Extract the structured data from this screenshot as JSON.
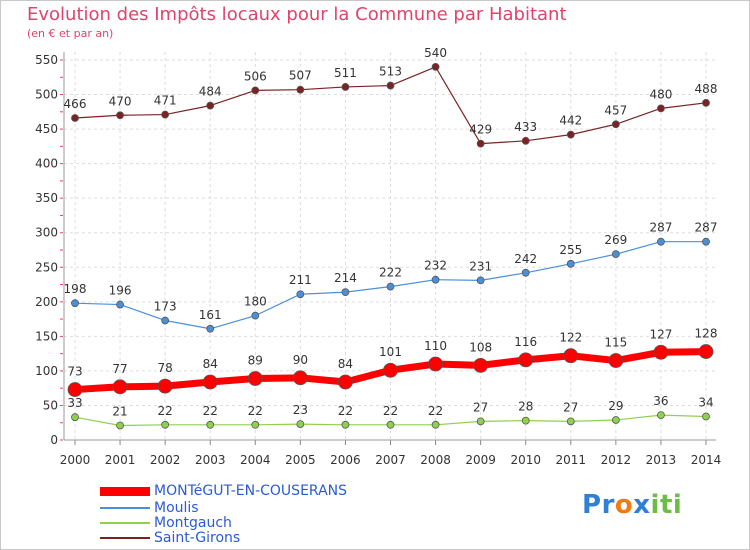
{
  "chart_data": {
    "type": "line",
    "title": "Evolution des Impôts locaux pour la Commune par Habitant",
    "subtitle": "(en € et par an)",
    "xlabel": "",
    "ylabel": "",
    "ylim": [
      0,
      550
    ],
    "yticks": [
      "0",
      "50",
      "100",
      "150",
      "200",
      "250",
      "300",
      "350",
      "400",
      "450",
      "500",
      "550"
    ],
    "grid": true,
    "legend_position": "bottom-left",
    "categories": [
      "2000",
      "2001",
      "2002",
      "2003",
      "2004",
      "2005",
      "2006",
      "2007",
      "2008",
      "2009",
      "2010",
      "2011",
      "2012",
      "2013",
      "2014"
    ],
    "series": [
      {
        "name": "MONTéGUT-EN-COUSERANS",
        "color": "#ff0000",
        "values": [
          73,
          77,
          78,
          84,
          89,
          90,
          84,
          101,
          110,
          108,
          116,
          122,
          115,
          127,
          128
        ]
      },
      {
        "name": "Moulis",
        "color": "#4a90d9",
        "values": [
          198,
          196,
          173,
          161,
          180,
          211,
          214,
          222,
          232,
          231,
          242,
          255,
          269,
          287,
          287
        ]
      },
      {
        "name": "Montgauch",
        "color": "#8fd14f",
        "values": [
          33,
          21,
          22,
          22,
          22,
          23,
          22,
          22,
          22,
          27,
          28,
          27,
          29,
          36,
          34
        ]
      },
      {
        "name": "Saint-Girons",
        "color": "#7b2323",
        "values": [
          466,
          470,
          471,
          484,
          506,
          507,
          511,
          513,
          540,
          429,
          433,
          442,
          457,
          480,
          488
        ]
      }
    ]
  },
  "legend": {
    "items": [
      "MONTéGUT-EN-COUSERANS",
      "Moulis",
      "Montgauch",
      "Saint-Girons"
    ]
  },
  "logo": {
    "letters": [
      "P",
      "r",
      "o",
      "x",
      "i",
      "t",
      "i"
    ],
    "colors": [
      "#2f7fd6",
      "#2f7fd6",
      "#f07a14",
      "#2f7fd6",
      "#6cbd45",
      "#6cbd45",
      "#6cbd45"
    ]
  }
}
